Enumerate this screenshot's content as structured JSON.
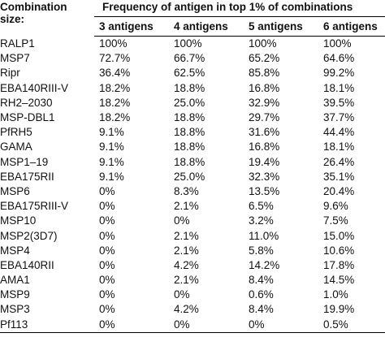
{
  "table": {
    "corner_header": "Combination size:",
    "span_header": "Frequency of antigen in top 1% of combinations",
    "columns": [
      "3 antigens",
      "4 antigens",
      "5 antigens",
      "6 antigens"
    ],
    "rows": [
      {
        "name": "RALP1",
        "values": [
          "100%",
          "100%",
          "100%",
          "100%"
        ]
      },
      {
        "name": "MSP7",
        "values": [
          "72.7%",
          "66.7%",
          "65.2%",
          "64.6%"
        ]
      },
      {
        "name": "Ripr",
        "values": [
          "36.4%",
          "62.5%",
          "85.8%",
          "99.2%"
        ]
      },
      {
        "name": "EBA140RIII-V",
        "values": [
          "18.2%",
          "18.8%",
          "16.8%",
          "18.1%"
        ]
      },
      {
        "name": "RH2–2030",
        "values": [
          "18.2%",
          "25.0%",
          "32.9%",
          "39.5%"
        ]
      },
      {
        "name": "MSP-DBL1",
        "values": [
          "18.2%",
          "18.8%",
          "29.7%",
          "37.7%"
        ]
      },
      {
        "name": "PfRH5",
        "values": [
          "9.1%",
          "18.8%",
          "31.6%",
          "44.4%"
        ]
      },
      {
        "name": "GAMA",
        "values": [
          "9.1%",
          "18.8%",
          "16.8%",
          "18.1%"
        ]
      },
      {
        "name": "MSP1–19",
        "values": [
          "9.1%",
          "18.8%",
          "19.4%",
          "26.4%"
        ]
      },
      {
        "name": "EBA175RII",
        "values": [
          "9.1%",
          "25.0%",
          "32.3%",
          "35.1%"
        ]
      },
      {
        "name": "MSP6",
        "values": [
          "0%",
          "8.3%",
          "13.5%",
          "20.4%"
        ]
      },
      {
        "name": "EBA175RIII-V",
        "values": [
          "0%",
          "2.1%",
          "6.5%",
          "9.6%"
        ]
      },
      {
        "name": "MSP10",
        "values": [
          "0%",
          "0%",
          "3.2%",
          "7.5%"
        ]
      },
      {
        "name": "MSP2(3D7)",
        "values": [
          "0%",
          "2.1%",
          "11.0%",
          "15.0%"
        ]
      },
      {
        "name": "MSP4",
        "values": [
          "0%",
          "2.1%",
          "5.8%",
          "10.6%"
        ]
      },
      {
        "name": "EBA140RII",
        "values": [
          "0%",
          "4.2%",
          "14.2%",
          "17.8%"
        ]
      },
      {
        "name": "AMA1",
        "values": [
          "0%",
          "2.1%",
          "8.4%",
          "14.5%"
        ]
      },
      {
        "name": "MSP9",
        "values": [
          "0%",
          "0%",
          "0.6%",
          "1.0%"
        ]
      },
      {
        "name": "MSP3",
        "values": [
          "0%",
          "4.2%",
          "8.4%",
          "19.9%"
        ]
      },
      {
        "name": "Pf113",
        "values": [
          "0%",
          "0%",
          "0%",
          "0.5%"
        ]
      }
    ]
  }
}
